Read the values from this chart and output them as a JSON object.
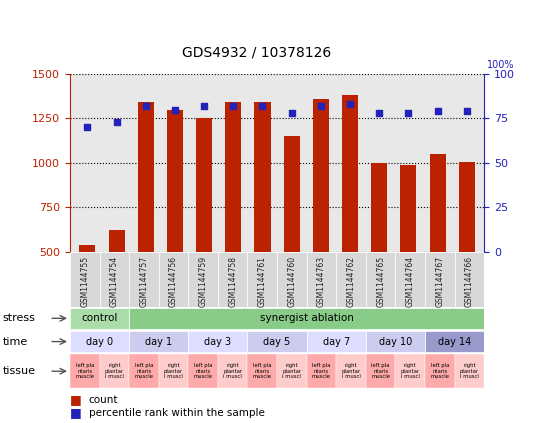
{
  "title": "GDS4932 / 10378126",
  "samples": [
    "GSM1144755",
    "GSM1144754",
    "GSM1144757",
    "GSM1144756",
    "GSM1144759",
    "GSM1144758",
    "GSM1144761",
    "GSM1144760",
    "GSM1144763",
    "GSM1144762",
    "GSM1144765",
    "GSM1144764",
    "GSM1144767",
    "GSM1144766"
  ],
  "counts": [
    540,
    620,
    1340,
    1295,
    1250,
    1340,
    1345,
    1150,
    1360,
    1380,
    1000,
    990,
    1050,
    1005
  ],
  "percentiles": [
    70,
    73,
    82,
    80,
    82,
    82,
    82,
    78,
    82,
    83,
    78,
    78,
    79,
    79
  ],
  "bar_color": "#bb2200",
  "dot_color": "#2222bb",
  "ylim_left": [
    500,
    1500
  ],
  "ylim_right": [
    0,
    100
  ],
  "yticks_left": [
    500,
    750,
    1000,
    1250,
    1500
  ],
  "yticks_right": [
    0,
    25,
    50,
    75,
    100
  ],
  "stress_control_color": "#aaddaa",
  "stress_ablation_color": "#88cc88",
  "time_colors": [
    "#ddddff",
    "#ccccee",
    "#ddddff",
    "#ccccee",
    "#ddddff",
    "#ccccee",
    "#9999cc"
  ],
  "time_data": [
    [
      "day 0",
      0,
      2
    ],
    [
      "day 1",
      2,
      4
    ],
    [
      "day 3",
      4,
      6
    ],
    [
      "day 5",
      6,
      8
    ],
    [
      "day 7",
      8,
      10
    ],
    [
      "day 10",
      10,
      12
    ],
    [
      "day 14",
      12,
      14
    ]
  ],
  "tissue_left_color": "#ffaaaa",
  "tissue_right_color": "#ffcccc",
  "legend_count_color": "#bb2200",
  "legend_pct_color": "#2222bb",
  "plot_bg_color": "#e8e8e8",
  "left_axis_color": "#bb2200",
  "right_axis_color": "#2222bb"
}
